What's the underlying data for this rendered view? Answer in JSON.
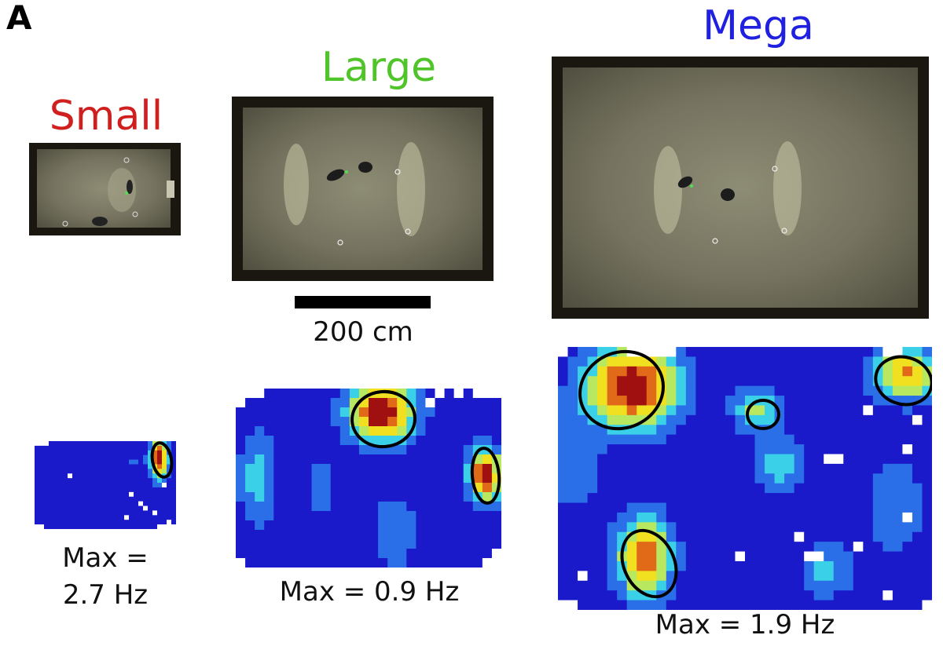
{
  "figure": {
    "panel_label": "A"
  },
  "arenas": [
    {
      "title": "Small",
      "title_color": "#d01f1f",
      "max_label_line1": "Max =",
      "max_label_line2": "2.7 Hz"
    },
    {
      "title": "Large",
      "title_color": "#4fc52a",
      "max_label": "Max = 0.9 Hz"
    },
    {
      "title": "Mega",
      "title_color": "#2020e0",
      "max_label": "Max = 1.9 Hz"
    }
  ],
  "scale_bar": {
    "label": "200 cm"
  },
  "colormap": [
    "#1a1acb",
    "#2a6ee8",
    "#3ad0e8",
    "#b8e860",
    "#f0e020",
    "#e06a18",
    "#a01010"
  ]
}
